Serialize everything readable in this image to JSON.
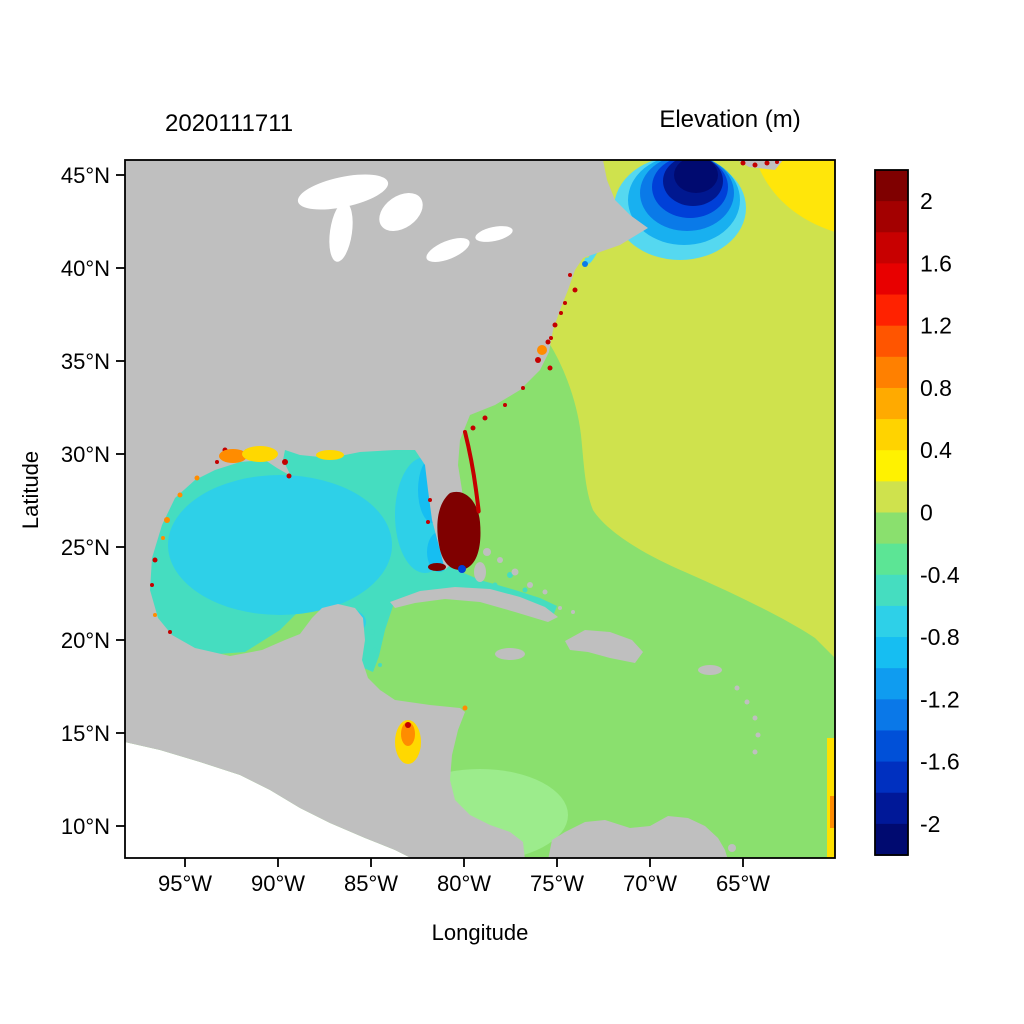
{
  "header": {
    "run_label": "2020111711",
    "colorbar_title": "Elevation (m)"
  },
  "axes": {
    "x": {
      "label": "Longitude",
      "ticks": [
        "95°W",
        "90°W",
        "85°W",
        "80°W",
        "75°W",
        "70°W",
        "65°W"
      ]
    },
    "y": {
      "label": "Latitude",
      "ticks": [
        "45°N",
        "40°N",
        "35°N",
        "30°N",
        "25°N",
        "20°N",
        "15°N",
        "10°N"
      ]
    }
  },
  "colorbar": {
    "labels": [
      "2",
      "1.6",
      "1.2",
      "0.8",
      "0.4",
      "0",
      "-0.4",
      "-0.8",
      "-1.2",
      "-1.6",
      "-2"
    ],
    "colors": [
      "#7f0000",
      "#a30000",
      "#c80000",
      "#e80000",
      "#ff2200",
      "#ff5500",
      "#ff8000",
      "#ffaa00",
      "#ffd300",
      "#fff200",
      "#cfe24d",
      "#8ae06e",
      "#5ce595",
      "#45ddc0",
      "#2ed0e8",
      "#16bef2",
      "#0f9cf0",
      "#0a78e8",
      "#0050d8",
      "#0030c0",
      "#001898",
      "#000a70"
    ]
  },
  "palette": {
    "land_gray": "#bfbfbf",
    "blank_white": "#ffffff",
    "atlantic_yellow_green": "#cfe24d",
    "green_water": "#8ae06e",
    "bright_green": "#9cec8c",
    "gulf_turquoise": "#45ddc0",
    "gulf_cyan": "#2ed0e8",
    "bright_cyan": "#16bef2",
    "maine_outer_cyan": "#55d8f0",
    "maine_blue_1": "#18b0f0",
    "maine_blue_2": "#0a7ae8",
    "maine_blue_3": "#0040d8",
    "maine_navy": "#001890",
    "maine_core": "#000a70",
    "yellow_patch": "#ffe60a",
    "surge_dark_red": "#7f0000",
    "surge_red": "#c40000",
    "orange": "#ff8c00",
    "yellow": "#ffd800",
    "cyan_speck": "#40c8f0",
    "strip_yellow": "#ffe000"
  },
  "chart_data": {
    "type": "heatmap",
    "title": "Elevation (m)",
    "timestamp": "2020111711",
    "xlabel": "Longitude",
    "ylabel": "Latitude",
    "x_ticks": [
      "95°W",
      "90°W",
      "85°W",
      "80°W",
      "75°W",
      "70°W",
      "65°W"
    ],
    "y_ticks": [
      "45°N",
      "40°N",
      "35°N",
      "30°N",
      "25°N",
      "20°N",
      "15°N",
      "10°N"
    ],
    "lon_range_deg_west": [
      98.2,
      60.2
    ],
    "lat_range_deg_north": [
      8.2,
      45.8
    ],
    "colorbar": {
      "orientation": "vertical",
      "position": "right",
      "range": [
        -2.2,
        2.2
      ],
      "segment_step": 0.2,
      "tick_values": [
        2,
        1.6,
        1.2,
        0.8,
        0.4,
        0,
        -0.4,
        -0.8,
        -1.2,
        -1.6,
        -2
      ]
    },
    "regions": [
      {
        "name": "open-atlantic",
        "approx_elevation_m": 0.3
      },
      {
        "name": "us-southeast-coastal-band-and-bahamas",
        "approx_elevation_m": 0.1
      },
      {
        "name": "caribbean-sea",
        "approx_elevation_m": 0.1
      },
      {
        "name": "southwest-caribbean",
        "approx_elevation_m": 0.15
      },
      {
        "name": "gulf-of-mexico-rim",
        "approx_elevation_m": -0.3
      },
      {
        "name": "gulf-of-mexico-center",
        "approx_elevation_m": -0.5
      },
      {
        "name": "west-florida-shelf",
        "approx_elevation_m": -0.7
      },
      {
        "name": "gulf-of-maine-core",
        "approx_elevation_m": -2.2
      },
      {
        "name": "gulf-of-maine-fringe",
        "approx_elevation_m": -1.0
      },
      {
        "name": "northeast-offshore-yellow-patch",
        "approx_elevation_m": 0.5
      },
      {
        "name": "south-florida-surge",
        "approx_elevation_m": 2.2
      },
      {
        "name": "florida-east-coast-surge",
        "approx_elevation_m": 1.6
      },
      {
        "name": "pamlico-chesapeake-coastal-speckles",
        "approx_elevation_m": 1.5
      },
      {
        "name": "north-gulf-coast-patches",
        "approx_elevation_m": 0.8
      },
      {
        "name": "nicaragua-coast-patch",
        "approx_elevation_m": 0.8
      },
      {
        "name": "bay-of-fundy-speckles",
        "approx_elevation_m": 2.2
      },
      {
        "name": "southeast-right-edge-strip",
        "approx_elevation_m": 0.5
      },
      {
        "name": "land",
        "value": "no-data-gray"
      },
      {
        "name": "pacific-lower-left",
        "value": "outside-domain-white"
      }
    ]
  }
}
